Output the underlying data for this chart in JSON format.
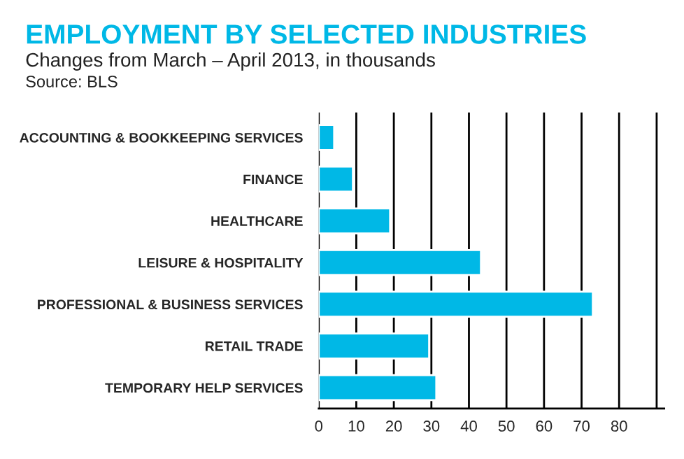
{
  "chart_data": {
    "type": "bar",
    "orientation": "horizontal",
    "title": "EMPLOYMENT BY SELECTED INDUSTRIES",
    "subtitle": "Changes from March – April 2013, in thousands",
    "annotations": [
      "Source: BLS"
    ],
    "categories": [
      "ACCOUNTING & BOOKKEEPING SERVICES",
      "FINANCE",
      "HEALTHCARE",
      "LEISURE & HOSPITALITY",
      "PROFESSIONAL & BUSINESS SERVICES",
      "RETAIL TRADE",
      "TEMPORARY HELP SERVICES"
    ],
    "values": [
      4.1,
      9.1,
      19,
      43.2,
      73,
      29.4,
      31.3
    ],
    "color": "#00b8e6",
    "xlim": [
      0,
      92
    ],
    "xticks": [
      0,
      10,
      20,
      30,
      40,
      50,
      60,
      70,
      80,
      {
        "value": 90,
        "label": null
      }
    ],
    "grid": "x"
  }
}
